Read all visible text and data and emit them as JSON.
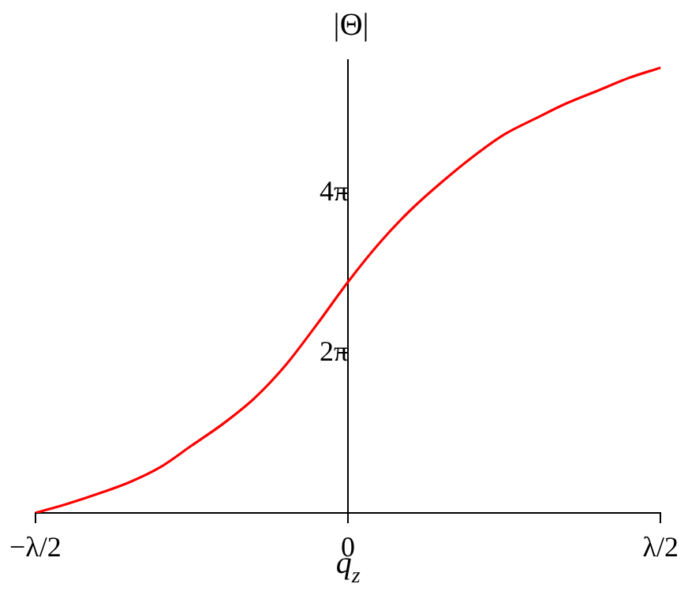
{
  "chart_data": {
    "type": "line",
    "xlabel": "q$_{z}$",
    "ylabel": "|Θ|",
    "categories": [
      "−λ/2",
      null,
      null,
      null,
      null,
      null,
      null,
      null,
      null,
      null,
      "0",
      null,
      null,
      null,
      null,
      null,
      null,
      null,
      null,
      null,
      "λ/2"
    ],
    "series": [
      {
        "color": "#ff0000",
        "values": [
          0,
          0.35,
          0.75,
          1.2,
          1.8,
          2.65,
          3.5,
          4.5,
          5.8,
          7.4,
          9.08,
          10.6,
          11.9,
          13.0,
          14.0,
          14.87,
          15.5,
          16.1,
          16.6,
          17.1,
          17.5
        ]
      }
    ],
    "ylim": [
      0,
      17.8
    ],
    "yticks": [
      {
        "value": 6.283,
        "label": "2π"
      },
      {
        "value": 12.566,
        "label": "4π"
      }
    ],
    "grid": false,
    "legend": false,
    "marker": "none",
    "line_style": "solid"
  }
}
